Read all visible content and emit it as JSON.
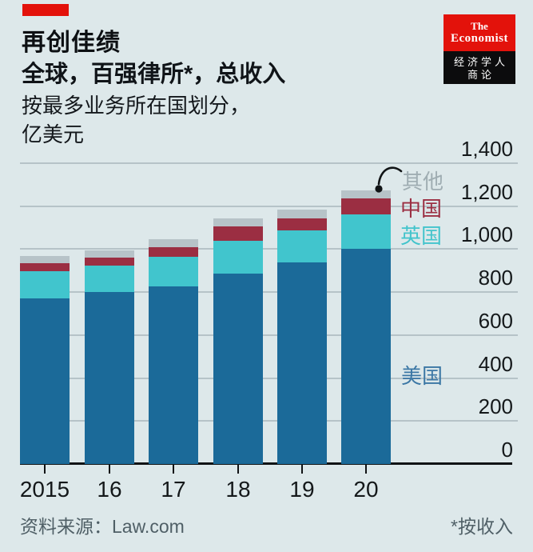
{
  "header": {
    "title": "再创佳绩",
    "subtitle": "全球，百强律所*，总收入",
    "note_line1": "按最多业务所在国划分，",
    "note_line2": "亿美元"
  },
  "logo": {
    "line1": "The",
    "line2": "Economist",
    "cn_line1": "经济学人",
    "cn_line2": "商论"
  },
  "colors": {
    "economist_red": "#e3120b",
    "background": "#dde8ea",
    "axis": "#101315",
    "gridline": "#b6c3c8",
    "us_bar": "#1b6a99",
    "uk_bar": "#41c5cd",
    "china_bar": "#9b2e42",
    "other_bar": "#b7c3c8"
  },
  "chart_data": {
    "type": "bar",
    "stacked": true,
    "title": "再创佳绩",
    "subtitle": "全球，百强律所*，总收入",
    "unit_label": "亿美元",
    "grouping_note": "按最多业务所在国划分",
    "categories": [
      "2015",
      "16",
      "17",
      "18",
      "19",
      "20"
    ],
    "series": [
      {
        "id": "us",
        "name": "美国",
        "color": "#1b6a99",
        "values": [
          770,
          800,
          825,
          886,
          939,
          1000
        ]
      },
      {
        "id": "uk",
        "name": "英国",
        "color": "#41c5cd",
        "values": [
          129,
          124,
          140,
          151,
          150,
          161
        ]
      },
      {
        "id": "china",
        "name": "中国",
        "color": "#9b2e42",
        "values": [
          35,
          37,
          43,
          70,
          53,
          74
        ]
      },
      {
        "id": "other",
        "name": "其他",
        "color": "#b7c3c8",
        "values": [
          34,
          34,
          37,
          37,
          41,
          37
        ]
      }
    ],
    "totals": [
      968,
      995,
      1045,
      1144,
      1183,
      1272
    ],
    "ylim": [
      0,
      1400
    ],
    "yticks": [
      0,
      200,
      400,
      600,
      800,
      1000,
      1200,
      1400
    ],
    "grid": true,
    "legend_position": "direct-labels-right"
  },
  "annotations": [
    {
      "id": "other",
      "text": "其他",
      "color": "#9fadb2"
    },
    {
      "id": "china",
      "text": "中国",
      "color": "#9b2e42"
    },
    {
      "id": "uk",
      "text": "英国",
      "color": "#43c4cc"
    },
    {
      "id": "us",
      "text": "美国",
      "color": "#3b77a5"
    }
  ],
  "footer": {
    "source": "资料来源：Law.com",
    "note": "*按收入"
  }
}
